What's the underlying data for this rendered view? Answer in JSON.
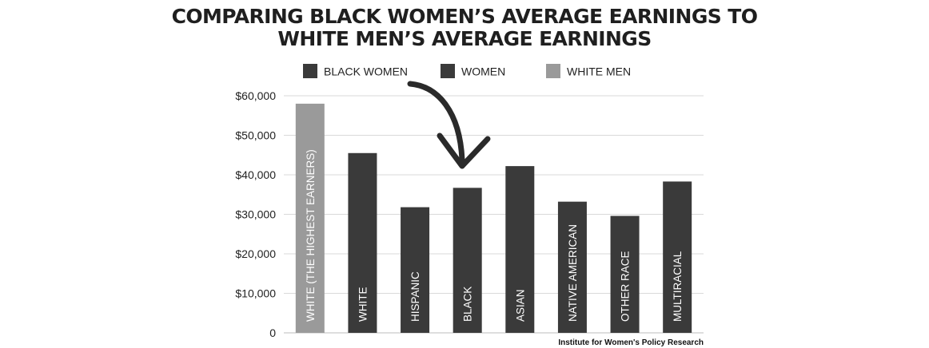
{
  "chart_data": {
    "type": "bar",
    "title": [
      "COMPARING BLACK WOMEN’S AVERAGE EARNINGS TO",
      "WHITE MEN’S AVERAGE EARNINGS"
    ],
    "legend": [
      {
        "label": "BLACK WOMEN",
        "color": "#3a3a3a"
      },
      {
        "label": "WOMEN",
        "color": "#3a3a3a"
      },
      {
        "label": "WHITE MEN",
        "color": "#9a9a9a"
      }
    ],
    "legend_position": "top-center",
    "categories": [
      "WHITE (THE HIGHEST EARNERS)",
      "WHITE",
      "HISPANIC",
      "BLACK",
      "ASIAN",
      "NATIVE AMERICAN",
      "OTHER RACE",
      "MULTIRACIAL"
    ],
    "values": [
      58000,
      45500,
      31800,
      36700,
      42200,
      33200,
      29600,
      38300
    ],
    "bar_colors": [
      "#9a9a9a",
      "#3a3a3a",
      "#3a3a3a",
      "#3a3a3a",
      "#3a3a3a",
      "#3a3a3a",
      "#3a3a3a",
      "#3a3a3a"
    ],
    "y_ticks": [
      0,
      10000,
      20000,
      30000,
      40000,
      50000,
      60000
    ],
    "y_tick_labels": [
      "0",
      "$10,000",
      "$20,000",
      "$30,000",
      "$40,000",
      "$50,000",
      "$60,000"
    ],
    "ylim": [
      0,
      60000
    ],
    "grid": true,
    "annotation": "curved arrow pointing to BLACK bar",
    "source": "Institute for Women's Policy Research"
  }
}
